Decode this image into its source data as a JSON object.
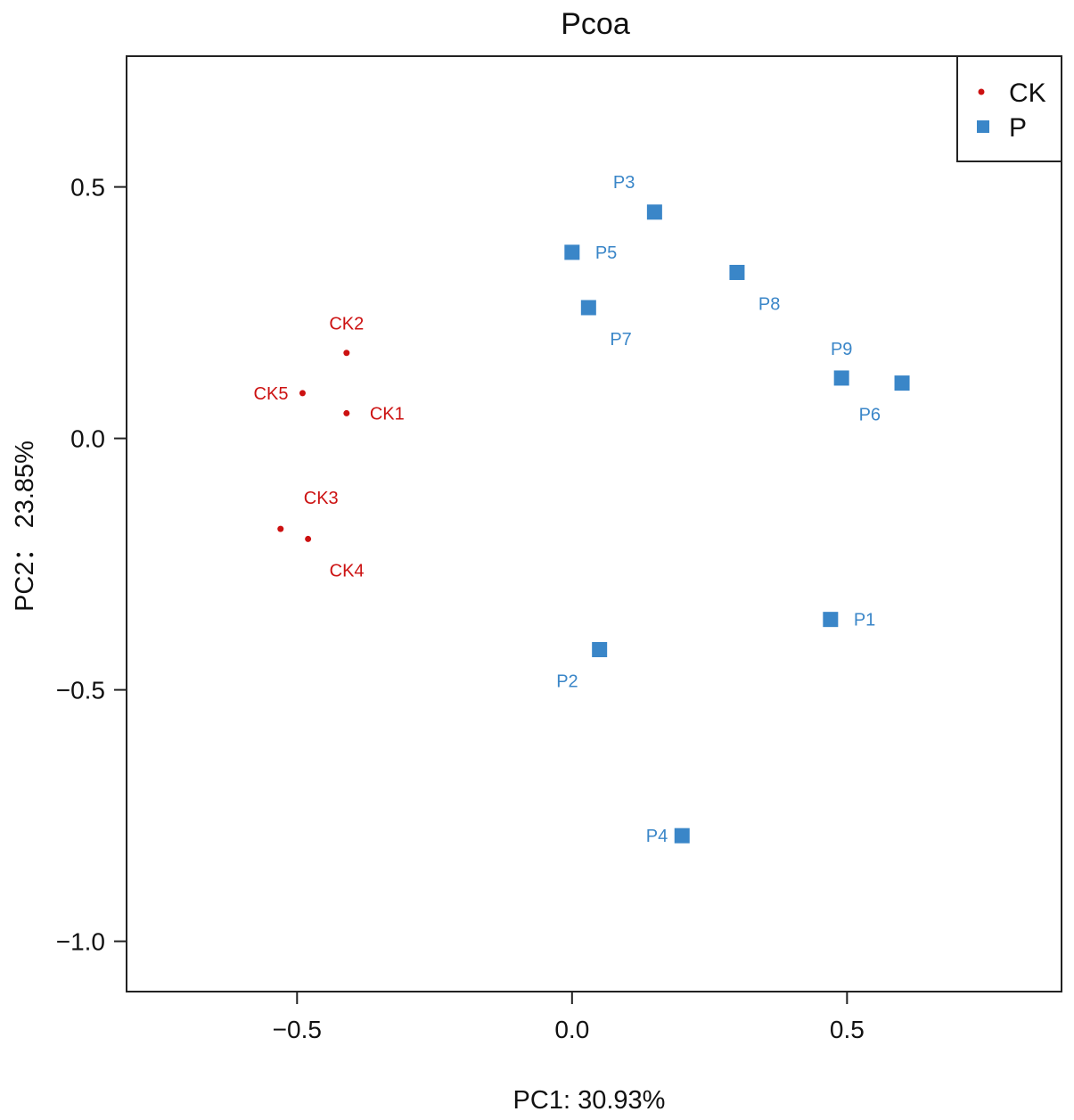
{
  "chart_data": {
    "type": "scatter",
    "title": "Pcoa",
    "xlabel": "PC1: 30.93%",
    "ylabel": "PC2： 23.85%",
    "xlim": [
      -0.81,
      0.89
    ],
    "ylim": [
      -1.1,
      0.76
    ],
    "xticks": [
      {
        "value": -0.5,
        "label": "−0.5"
      },
      {
        "value": 0.0,
        "label": "0.0"
      },
      {
        "value": 0.5,
        "label": "0.5"
      }
    ],
    "yticks": [
      {
        "value": 0.5,
        "label": "0.5"
      },
      {
        "value": 0.0,
        "label": "0.0"
      },
      {
        "value": -0.5,
        "label": "−0.5"
      },
      {
        "value": -1.0,
        "label": "−1.0"
      }
    ],
    "grid": false,
    "legend": {
      "position": "top-right",
      "entries": [
        {
          "name": "CK",
          "marker": "circle",
          "color": "#cc1111"
        },
        {
          "name": "P",
          "marker": "square",
          "color": "#3a86c8"
        }
      ]
    },
    "series": [
      {
        "name": "CK",
        "marker": "circle",
        "color": "#cc1111",
        "points": [
          {
            "label": "CK1",
            "x": -0.41,
            "y": 0.05,
            "label_pos": "right"
          },
          {
            "label": "CK2",
            "x": -0.41,
            "y": 0.17,
            "label_pos": "above"
          },
          {
            "label": "CK3",
            "x": -0.53,
            "y": -0.18,
            "label_pos": "above-right"
          },
          {
            "label": "CK4",
            "x": -0.48,
            "y": -0.2,
            "label_pos": "below-right"
          },
          {
            "label": "CK5",
            "x": -0.49,
            "y": 0.09,
            "label_pos": "left"
          }
        ]
      },
      {
        "name": "P",
        "marker": "square",
        "color": "#3a86c8",
        "points": [
          {
            "label": "P1",
            "x": 0.47,
            "y": -0.36,
            "label_pos": "right"
          },
          {
            "label": "P2",
            "x": 0.05,
            "y": -0.42,
            "label_pos": "below-left"
          },
          {
            "label": "P3",
            "x": 0.15,
            "y": 0.45,
            "label_pos": "above-left"
          },
          {
            "label": "P4",
            "x": 0.2,
            "y": -0.79,
            "label_pos": "left"
          },
          {
            "label": "P5",
            "x": 0.0,
            "y": 0.37,
            "label_pos": "right"
          },
          {
            "label": "P6",
            "x": 0.6,
            "y": 0.11,
            "label_pos": "below-left"
          },
          {
            "label": "P7",
            "x": 0.03,
            "y": 0.26,
            "label_pos": "below-right"
          },
          {
            "label": "P8",
            "x": 0.3,
            "y": 0.33,
            "label_pos": "below-right"
          },
          {
            "label": "P9",
            "x": 0.49,
            "y": 0.12,
            "label_pos": "above"
          }
        ]
      }
    ]
  }
}
